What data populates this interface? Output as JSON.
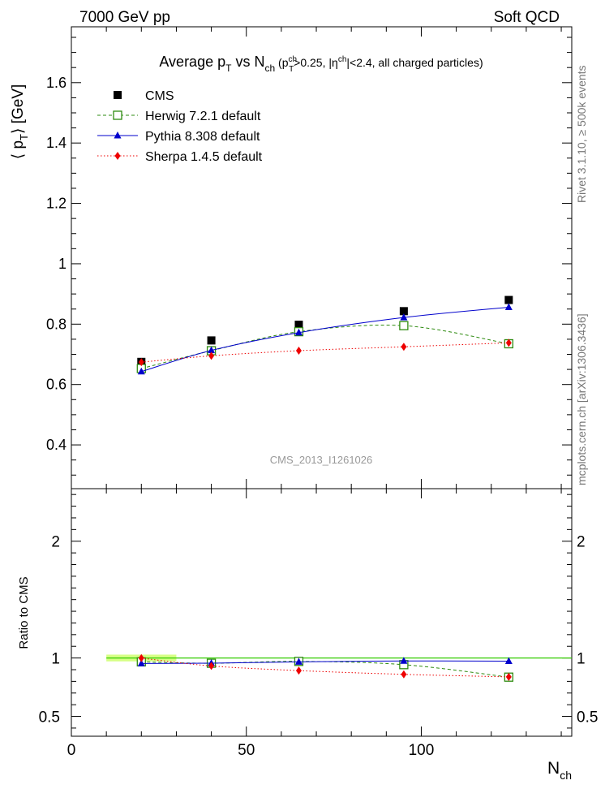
{
  "header": {
    "left": "7000 GeV pp",
    "right": "Soft QCD"
  },
  "side": {
    "rivet": "Rivet 3.1.10, ≥ 500k events",
    "mcplots": "mcplots.cern.ch [arXiv:1306.3436]"
  },
  "watermark": "CMS_2013_I1261026",
  "colors": {
    "cms": "#000000",
    "herwig": "#2e8b10",
    "pythia": "#0000cc",
    "sherpa": "#ee0000",
    "band": "#ccff66",
    "refline": "#33cc00"
  },
  "chart_data": [
    {
      "type": "scatter",
      "title": "Average p_T vs N_ch (p_T^ch>0.25, |η^ch|<2.4, all charged particles)",
      "title_parts": {
        "main": "Average p",
        "sub1": "T",
        "vs": " vs N",
        "sub2": "ch",
        "extra": " (p",
        "extra_sup": "ch",
        "extra_sub": "T",
        "rest": ">0.25, |η",
        "rest_sup": "ch",
        "rest_end": "|<2.4, all charged particles)"
      },
      "ylabel": "⟨ p_T ⟩ [GeV]",
      "ylabel_parts": {
        "pre": "⟨ p",
        "sub": "T",
        "post": "⟩ [GeV]"
      },
      "xlim": [
        0,
        143
      ],
      "ylim": [
        0.255,
        1.785
      ],
      "yticks": [
        0.4,
        0.6,
        0.8,
        1,
        1.2,
        1.4,
        1.6
      ],
      "ytick_labels": [
        "0.4",
        "0.6",
        "0.8",
        "1",
        "1.2",
        "1.4",
        "1.6"
      ],
      "x": [
        20,
        40,
        65,
        95,
        125
      ],
      "series": [
        {
          "name": "CMS",
          "values": [
            0.675,
            0.746,
            0.798,
            0.843,
            0.88
          ]
        },
        {
          "name": "Herwig 7.2.1 default",
          "values": [
            0.653,
            0.712,
            0.775,
            0.795,
            0.735
          ]
        },
        {
          "name": "Pythia 8.308 default",
          "values": [
            0.643,
            0.713,
            0.772,
            0.822,
            0.856
          ]
        },
        {
          "name": "Sherpa 1.4.5 default",
          "values": [
            0.674,
            0.695,
            0.712,
            0.725,
            0.738
          ]
        }
      ],
      "legend_position": "top-left"
    },
    {
      "type": "scatter",
      "ylabel": "Ratio to CMS",
      "xlabel": "N_ch",
      "xlabel_parts": {
        "main": "N",
        "sub": "ch"
      },
      "xlim": [
        0,
        143
      ],
      "ylim": [
        0.33,
        2.45
      ],
      "yticks": [
        0.5,
        1,
        2
      ],
      "ytick_labels": [
        "0.5",
        "1",
        "2"
      ],
      "xticks": [
        0,
        50,
        100
      ],
      "xtick_labels": [
        "0",
        "50",
        "100"
      ],
      "reference_band": {
        "x": [
          10,
          30
        ],
        "y": [
          0.985,
          1.015
        ]
      },
      "x": [
        20,
        40,
        65,
        95,
        125
      ],
      "series": [
        {
          "name": "Herwig 7.2.1 default",
          "values": [
            0.967,
            0.955,
            0.971,
            0.943,
            0.836
          ]
        },
        {
          "name": "Pythia 8.308 default",
          "values": [
            0.953,
            0.956,
            0.967,
            0.975,
            0.973
          ]
        },
        {
          "name": "Sherpa 1.4.5 default",
          "values": [
            0.999,
            0.932,
            0.892,
            0.86,
            0.838
          ]
        }
      ]
    }
  ]
}
